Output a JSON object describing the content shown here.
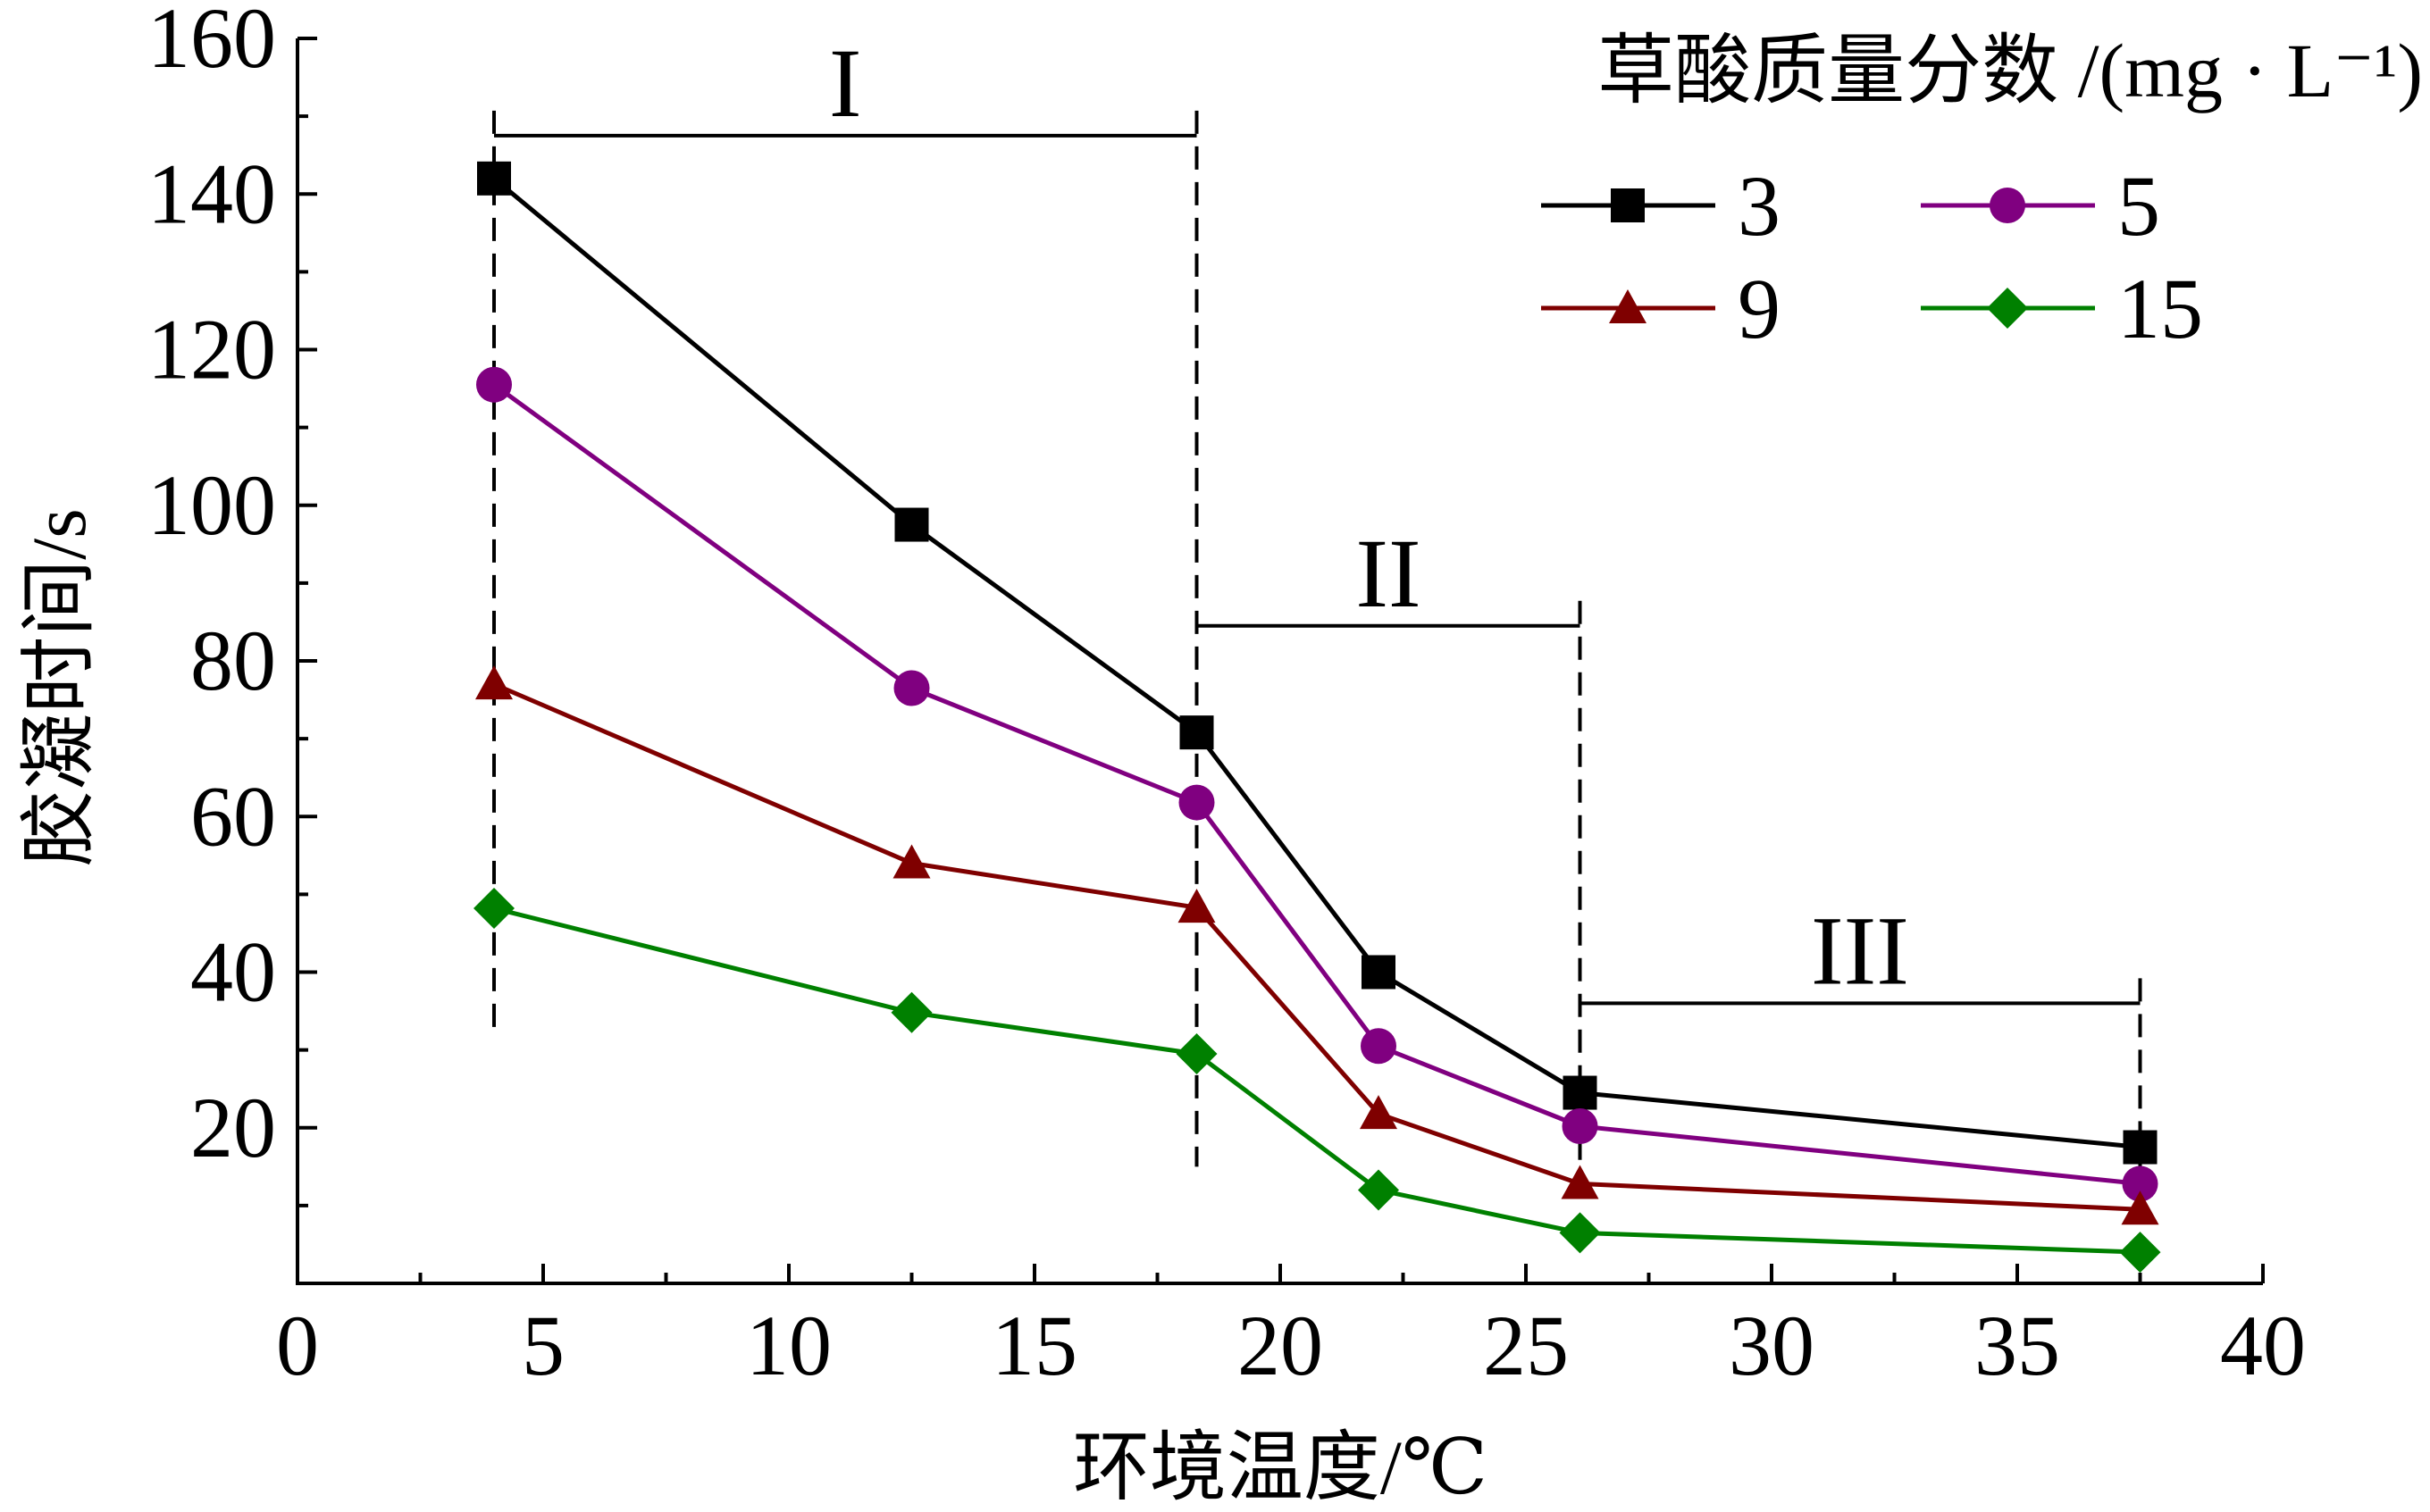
{
  "chart_data": {
    "type": "line",
    "xlabel": "环境温度/℃",
    "ylabel": "胶凝时间/s",
    "xlim": [
      0,
      40
    ],
    "ylim": [
      0,
      160
    ],
    "x_ticks": [
      0,
      5,
      10,
      15,
      20,
      25,
      30,
      35,
      40
    ],
    "y_ticks": [
      20,
      40,
      60,
      80,
      100,
      120,
      140,
      160
    ],
    "x": [
      4,
      12.5,
      18.3,
      22,
      26.1,
      37.5
    ],
    "legend_title": "草酸质量分数 /(mg · L⁻¹)",
    "legend_position": "top-right",
    "grid": false,
    "series": [
      {
        "name": "3",
        "color": "#000000",
        "marker": "square",
        "values": [
          142,
          97.5,
          70.8,
          40,
          24.5,
          17.5
        ]
      },
      {
        "name": "5",
        "color": "#800080",
        "marker": "circle",
        "values": [
          115.5,
          76.5,
          61.8,
          30.5,
          20.2,
          12.8
        ]
      },
      {
        "name": "9",
        "color": "#7f0000",
        "marker": "triangle",
        "values": [
          77,
          54,
          48.3,
          21.8,
          12.8,
          9.5
        ]
      },
      {
        "name": "15",
        "color": "#008000",
        "marker": "diamond",
        "values": [
          48.2,
          34.8,
          29.5,
          12,
          6.5,
          4
        ]
      }
    ],
    "regions": [
      {
        "label": "I",
        "x_start": 4,
        "x_end": 18.3,
        "bracket_y": 147.5,
        "dash_bottom": 32
      },
      {
        "label": "II",
        "x_start": 18.3,
        "x_end": 26.1,
        "bracket_y": 84.5,
        "dash_bottom": 15
      },
      {
        "label": "III",
        "x_start": 26.1,
        "x_end": 37.5,
        "bracket_y": 36,
        "dash_bottom": 15
      }
    ]
  }
}
